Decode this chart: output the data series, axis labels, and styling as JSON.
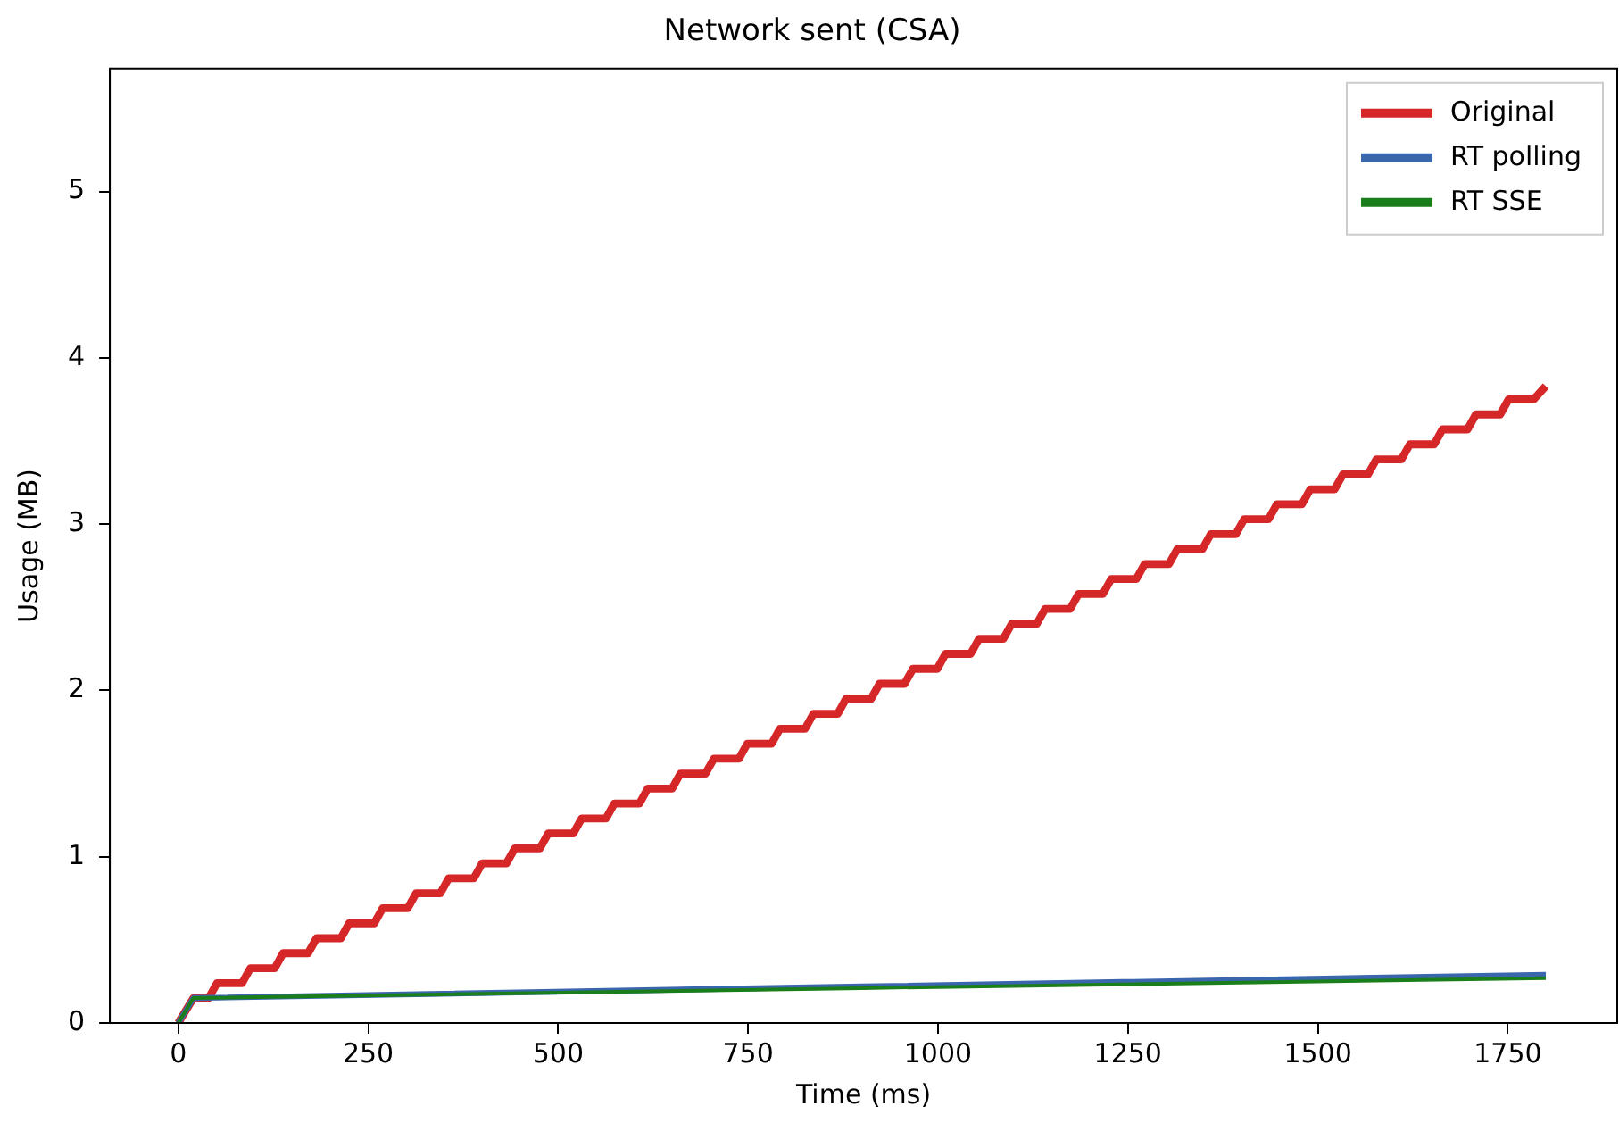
{
  "chart_data": {
    "type": "line",
    "title": "Network sent (CSA)",
    "xlabel": "Time (ms)",
    "ylabel": "Usage (MB)",
    "xlim": [
      -90,
      1894
    ],
    "ylim": [
      0,
      5.74
    ],
    "xticks": [
      0,
      250,
      500,
      750,
      1000,
      1250,
      1500,
      1750
    ],
    "yticks": [
      0,
      1,
      2,
      3,
      4,
      5
    ],
    "grid": false,
    "legend": "top right",
    "marker": "none",
    "line_style": "solid",
    "series": [
      {
        "name": "Original",
        "color": "#d62728",
        "x": [
          0,
          20,
          40,
          51,
          84,
          95,
          127,
          138,
          171,
          182,
          214,
          225,
          258,
          269,
          302,
          313,
          345,
          356,
          389,
          400,
          432,
          443,
          476,
          487,
          520,
          531,
          563,
          574,
          607,
          618,
          650,
          661,
          694,
          705,
          738,
          749,
          781,
          792,
          825,
          836,
          868,
          879,
          912,
          923,
          956,
          967,
          999,
          1010,
          1043,
          1054,
          1086,
          1097,
          1130,
          1141,
          1174,
          1185,
          1217,
          1228,
          1261,
          1272,
          1304,
          1315,
          1348,
          1359,
          1392,
          1403,
          1435,
          1446,
          1479,
          1490,
          1522,
          1533,
          1566,
          1577,
          1610,
          1621,
          1653,
          1664,
          1697,
          1708,
          1740,
          1751,
          1784,
          1800
        ],
        "values": [
          0,
          0.15,
          0.15,
          0.24,
          0.24,
          0.33,
          0.33,
          0.42,
          0.42,
          0.51,
          0.51,
          0.6,
          0.6,
          0.69,
          0.69,
          0.78,
          0.78,
          0.87,
          0.87,
          0.96,
          0.96,
          1.05,
          1.05,
          1.14,
          1.14,
          1.23,
          1.23,
          1.32,
          1.32,
          1.41,
          1.41,
          1.5,
          1.5,
          1.59,
          1.59,
          1.68,
          1.68,
          1.77,
          1.77,
          1.86,
          1.86,
          1.95,
          1.95,
          2.04,
          2.04,
          2.13,
          2.13,
          2.22,
          2.22,
          2.31,
          2.31,
          2.4,
          2.4,
          2.49,
          2.49,
          2.58,
          2.58,
          2.67,
          2.67,
          2.76,
          2.76,
          2.85,
          2.85,
          2.94,
          2.94,
          3.03,
          3.03,
          3.12,
          3.12,
          3.21,
          3.21,
          3.3,
          3.3,
          3.39,
          3.39,
          3.48,
          3.48,
          3.57,
          3.57,
          3.66,
          3.66,
          3.75,
          3.75,
          3.83
        ]
      },
      {
        "name": "RT polling",
        "color": "#3a66ad",
        "x": [
          0,
          20,
          900,
          1800
        ],
        "values": [
          0,
          0.15,
          0.22,
          0.29
        ]
      },
      {
        "name": "RT SSE",
        "color": "#1a7f1a",
        "x": [
          0,
          20,
          900,
          1800
        ],
        "values": [
          0,
          0.15,
          0.21,
          0.27
        ]
      }
    ]
  }
}
